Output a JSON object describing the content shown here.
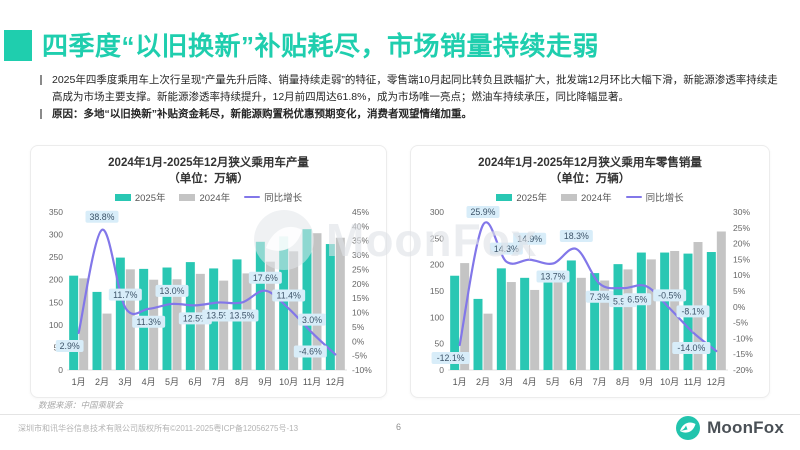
{
  "header": {
    "title": "四季度“以旧换新”补贴耗尽，市场销量持续走弱"
  },
  "bullets": [
    {
      "text": "2025年四季度乘用车上次行呈现“产量先升后降、销量持续走弱”的特征，零售端10月起同比转负且跌幅扩大，批发端12月环比大幅下滑，新能源渗透率持续走高成为市场主要支撑。新能源渗透率持续提升，12月前四周达61.8%，成为市场唯一亮点；燃油车持续承压，同比降幅显著。",
      "bold": false
    },
    {
      "text": "原因：多地“以旧换新”补贴资金耗尽，新能源购置税优惠预期变化，消费者观望情绪加重。",
      "bold": true
    }
  ],
  "colors": {
    "accent": "#1fceae",
    "bar_2025": "#29c7b3",
    "bar_2024": "#c4c4c4",
    "line": "#8277e9",
    "label_box_bg": "#d8edf9",
    "label_box_text": "#3d5469"
  },
  "chart_data": [
    {
      "type": "bar",
      "title_line1": "2024年1月-2025年12月狭义乘用车产量",
      "title_line2": "（单位：万辆）",
      "categories": [
        "1月",
        "2月",
        "3月",
        "4月",
        "5月",
        "6月",
        "7月",
        "8月",
        "9月",
        "10月",
        "11月",
        "12月"
      ],
      "series": [
        {
          "name": "2025年",
          "kind": "bar",
          "color": "#29c7b3",
          "values": [
            209,
            173,
            249,
            224,
            227,
            239,
            225,
            245,
            284,
            296,
            312,
            279
          ]
        },
        {
          "name": "2024年",
          "kind": "bar",
          "color": "#c4c4c4",
          "values": [
            203,
            125,
            223,
            200,
            201,
            213,
            198,
            214,
            240,
            263,
            303,
            293
          ]
        },
        {
          "name": "同比增长",
          "kind": "line",
          "color": "#8277e9",
          "axis": "right",
          "values": [
            2.9,
            38.8,
            11.7,
            11.3,
            13.0,
            12.5,
            13.5,
            13.5,
            17.6,
            11.4,
            3.0,
            -4.6
          ],
          "labels": [
            "2.9%",
            "38.8%",
            "11.7%",
            "11.3%",
            "13.0%",
            "12.5%",
            "13.5%",
            "13.5%",
            "17.6%",
            "11.4%",
            "3.0%",
            "-4.6%"
          ],
          "label_positions": [
            "below-left",
            "above",
            "above",
            "below",
            "above",
            "below",
            "below",
            "below",
            "above",
            "above",
            "above",
            "left"
          ]
        }
      ],
      "y_left": {
        "min": 0,
        "max": 350,
        "step": 50,
        "suffix": ""
      },
      "y_right": {
        "min": -10,
        "max": 45,
        "step": 5,
        "suffix": "%"
      },
      "grid": false,
      "legend_position": "top"
    },
    {
      "type": "bar",
      "title_line1": "2024年1月-2025年12月狭义乘用车零售销量",
      "title_line2": "（单位：万辆）",
      "categories": [
        "1月",
        "2月",
        "3月",
        "4月",
        "5月",
        "6月",
        "7月",
        "8月",
        "9月",
        "10月",
        "11月",
        "12月"
      ],
      "series": [
        {
          "name": "2025年",
          "kind": "bar",
          "color": "#29c7b3",
          "values": [
            179,
            135,
            193,
            175,
            166,
            208,
            184,
            201,
            223,
            223,
            221,
            224
          ]
        },
        {
          "name": "2024年",
          "kind": "bar",
          "color": "#c4c4c4",
          "values": [
            203,
            107,
            167,
            152,
            177,
            175,
            170,
            191,
            210,
            226,
            243,
            263
          ]
        },
        {
          "name": "同比增长",
          "kind": "line",
          "color": "#8277e9",
          "axis": "right",
          "values": [
            -12.1,
            25.9,
            14.3,
            14.9,
            13.7,
            18.3,
            7.3,
            5.9,
            6.5,
            -0.5,
            -8.1,
            -14.0
          ],
          "labels": [
            "-12.1%",
            "25.9%",
            "14.3%",
            "14.9%",
            "13.7%",
            "18.3%",
            "7.3%",
            "5.9%",
            "6.5%",
            "-0.5%",
            "-8.1%",
            "-14.0%"
          ],
          "label_positions": [
            "below-left",
            "above",
            "above",
            "above-far",
            "below",
            "above",
            "below",
            "below",
            "below-left",
            "above",
            "above-far",
            "left"
          ]
        }
      ],
      "y_left": {
        "min": 0,
        "max": 300,
        "step": 50,
        "suffix": ""
      },
      "y_right": {
        "min": -20,
        "max": 30,
        "step": 5,
        "suffix": "%"
      },
      "grid": false,
      "legend_position": "top"
    }
  ],
  "source_note": "数据来源：中国乘联会",
  "watermark": "MoonFox",
  "footer": {
    "copyright": "深圳市和讯华谷信息技术有限公司版权所有©2011-2025粤ICP备12056275号-13",
    "page_number": "6",
    "logo_text": "MoonFox"
  }
}
